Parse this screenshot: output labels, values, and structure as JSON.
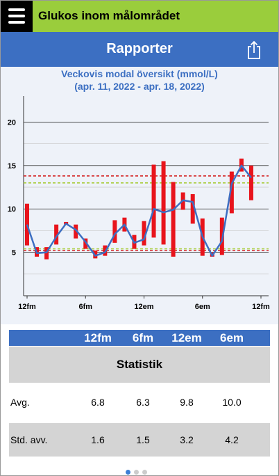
{
  "header": {
    "title": "Glukos inom målområdet"
  },
  "nav": {
    "title": "Rapporter"
  },
  "chart_data": {
    "type": "range",
    "title": "Veckovis modal översikt (mmol/L)",
    "subtitle": "(apr. 11, 2022 - apr. 18, 2022)",
    "x": [
      0,
      1,
      2,
      3,
      4,
      5,
      6,
      7,
      8,
      9,
      10,
      11,
      12,
      13,
      14,
      15,
      16,
      17,
      18,
      19,
      20,
      21,
      22,
      23
    ],
    "lows": [
      5.8,
      4.5,
      4.2,
      5.9,
      8.2,
      6.6,
      5.4,
      4.3,
      4.6,
      6.1,
      7.4,
      5.4,
      5.8,
      6.7,
      5.9,
      4.5,
      9.9,
      8.3,
      4.6,
      4.5,
      4.7,
      9.5,
      14.3,
      11.0
    ],
    "highs": [
      10.6,
      5.6,
      5.6,
      8.2,
      8.5,
      8.2,
      6.6,
      5.2,
      5.8,
      8.7,
      9.0,
      7.0,
      8.6,
      15.1,
      15.5,
      13.1,
      11.9,
      11.7,
      8.9,
      5.0,
      9.0,
      14.3,
      15.8,
      15.0
    ],
    "medians": [
      8.2,
      4.9,
      5.0,
      6.8,
      8.3,
      7.6,
      6.2,
      4.6,
      5.0,
      7.1,
      8.2,
      6.1,
      6.5,
      10.0,
      9.6,
      9.9,
      11.0,
      10.8,
      6.8,
      4.6,
      6.3,
      12.9,
      15.0,
      13.6
    ],
    "bar_color": "#e8141c",
    "line_color": "#3d6fc2",
    "xlim": [
      0,
      24
    ],
    "xticks": [
      {
        "value": 0,
        "label": "12fm"
      },
      {
        "value": 6,
        "label": "6fm"
      },
      {
        "value": 12,
        "label": "12em"
      },
      {
        "value": 18,
        "label": "6em"
      },
      {
        "value": 24,
        "label": "12fm"
      }
    ],
    "ylim": [
      0,
      23
    ],
    "yticks": [
      5,
      10,
      15,
      20
    ],
    "minor_yticks": [
      2.5,
      7.5,
      12.5,
      17.5
    ],
    "grid": true,
    "reference_lines": [
      {
        "value": 13.8,
        "color": "#d42020"
      },
      {
        "value": 13.0,
        "color": "#a8cc3a"
      },
      {
        "value": 5.4,
        "color": "#a8cc3a"
      },
      {
        "value": 5.2,
        "color": "#d42020"
      }
    ]
  },
  "table": {
    "columns": [
      "12fm",
      "6fm",
      "12em",
      "6em"
    ],
    "section": "Statistik",
    "rows": [
      [
        "Avg.",
        "6.8",
        "6.3",
        "9.8",
        "10.0"
      ],
      [
        "Std. avv.",
        "1.6",
        "1.5",
        "3.2",
        "4.2"
      ]
    ]
  }
}
